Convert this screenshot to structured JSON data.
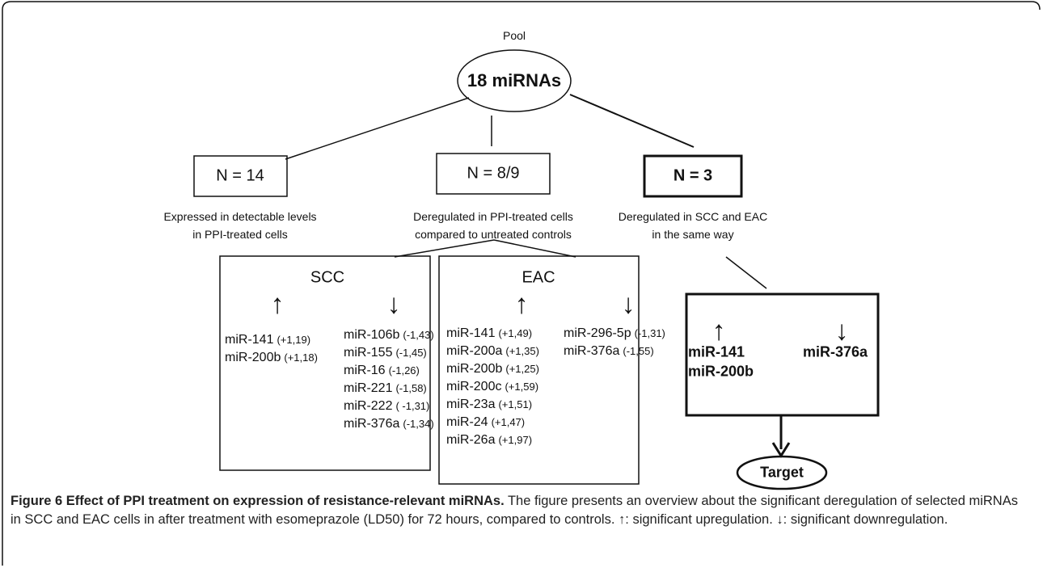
{
  "pool": {
    "label": "Pool",
    "node": "18 miRNAs"
  },
  "branches": [
    {
      "count": "N = 14",
      "description": [
        "Expressed in detectable levels",
        "in PPI-treated cells"
      ]
    },
    {
      "count": "N = 8/9",
      "description": [
        "Deregulated in PPI-treated cells",
        "compared to untreated controls"
      ]
    },
    {
      "count": "N = 3",
      "description": [
        "Deregulated in SCC and EAC",
        "in the same way"
      ]
    }
  ],
  "scc": {
    "title": "SCC",
    "up_symbol": "↑",
    "down_symbol": "↓",
    "up": [
      {
        "name": "miR-141",
        "change": "(+1,19)"
      },
      {
        "name": "miR-200b",
        "change": "(+1,18)"
      }
    ],
    "down": [
      {
        "name": "miR-106b",
        "change": "(-1,43)"
      },
      {
        "name": "miR-155",
        "change": "(-1,45)"
      },
      {
        "name": "miR-16",
        "change": "(-1,26)"
      },
      {
        "name": "miR-221",
        "change": "(-1,58)"
      },
      {
        "name": "miR-222",
        "change": "( -1,31)"
      },
      {
        "name": "miR-376a",
        "change": "(-1,34)"
      }
    ]
  },
  "eac": {
    "title": "EAC",
    "up_symbol": "↑",
    "down_symbol": "↓",
    "up": [
      {
        "name": "miR-141",
        "change": "(+1,49)"
      },
      {
        "name": "miR-200a",
        "change": "(+1,35)"
      },
      {
        "name": "miR-200b",
        "change": "(+1,25)"
      },
      {
        "name": "miR-200c",
        "change": "(+1,59)"
      },
      {
        "name": "miR-23a",
        "change": "(+1,51)"
      },
      {
        "name": "miR-24",
        "change": "(+1,47)"
      },
      {
        "name": "miR-26a",
        "change": "(+1,97)"
      }
    ],
    "down": [
      {
        "name": "miR-296-5p",
        "change": "(-1,31)"
      },
      {
        "name": "miR-376a",
        "change": "(-1,55)"
      }
    ]
  },
  "common": {
    "up_symbol": "↑",
    "down_symbol": "↓",
    "up": [
      "miR-141",
      "miR-200b"
    ],
    "down": [
      "miR-376a"
    ],
    "target": "Target"
  },
  "caption": {
    "title": "Figure 6 Effect of PPI treatment on expression of resistance-relevant miRNAs.",
    "body": "The figure presents an overview about the significant deregulation of selected miRNAs in SCC and EAC cells in after treatment with esomeprazole (LD50) for 72 hours, compared to controls.",
    "up_symbol": "↑",
    "up_text": ": significant upregulation.",
    "down_symbol": "↓",
    "down_text": ": significant downregulation."
  }
}
